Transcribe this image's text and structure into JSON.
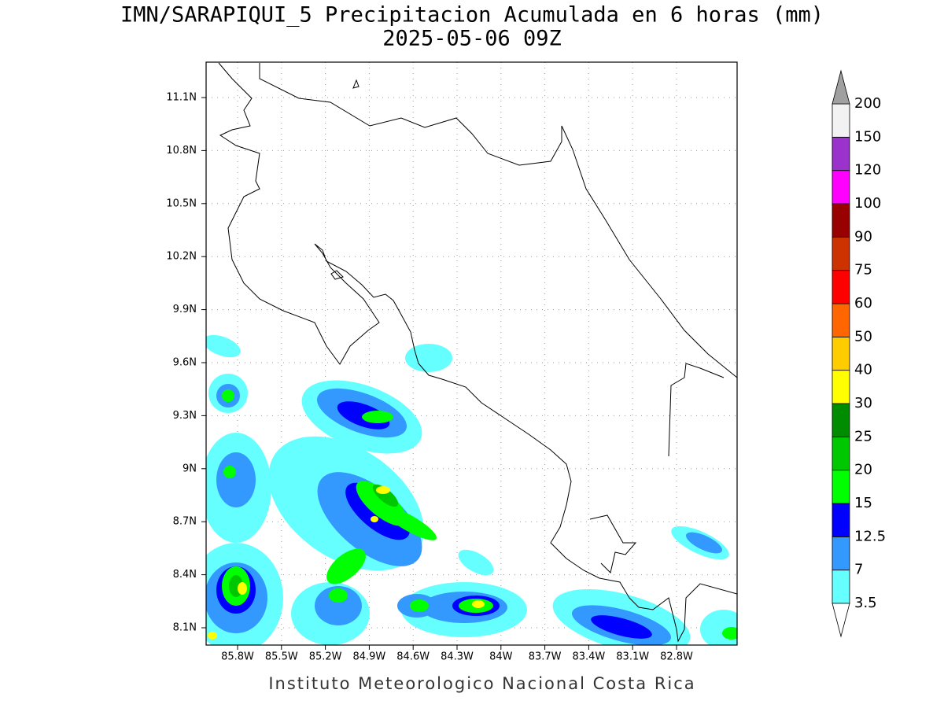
{
  "header": {
    "title": "IMN/SARAPIQUI_5 Precipitacion Acumulada en 6 horas (mm)",
    "subtitle": "2025-05-06 09Z"
  },
  "map": {
    "lat_labels": [
      "11.1N",
      "10.8N",
      "10.5N",
      "10.2N",
      "9.9N",
      "9.6N",
      "9.3N",
      "9N",
      "8.7N",
      "8.4N",
      "8.1N"
    ],
    "lon_labels": [
      "85.8W",
      "85.5W",
      "85.2W",
      "84.9W",
      "84.6W",
      "84.3W",
      "84W",
      "83.7W",
      "83.4W",
      "83.1W",
      "82.8W"
    ]
  },
  "colorbar": {
    "levels": [
      3.5,
      7,
      12.5,
      15,
      20,
      25,
      30,
      40,
      50,
      60,
      75,
      90,
      100,
      120,
      150,
      200
    ],
    "colors": [
      "#66ffff",
      "#3399ff",
      "#0000ff",
      "#00ff00",
      "#00c800",
      "#008c00",
      "#ffff00",
      "#ffcc00",
      "#ff6600",
      "#ff0000",
      "#cc3300",
      "#990000",
      "#ff00ff",
      "#9933cc",
      "#f2f2f2"
    ],
    "under_color": "#ffffff",
    "over_color": "#a0a0a0"
  },
  "footer": "Instituto Meteorologico Nacional Costa Rica"
}
